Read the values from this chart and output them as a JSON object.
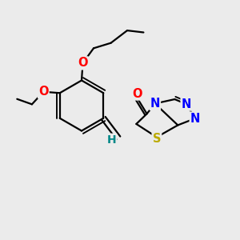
{
  "background_color": "#ebebeb",
  "bond_color": "#000000",
  "bond_width": 1.6,
  "atom_colors": {
    "O": "#ff0000",
    "N": "#0000ff",
    "S": "#bbaa00",
    "H": "#008888",
    "C": "#000000"
  },
  "font_size_atom": 10.5
}
